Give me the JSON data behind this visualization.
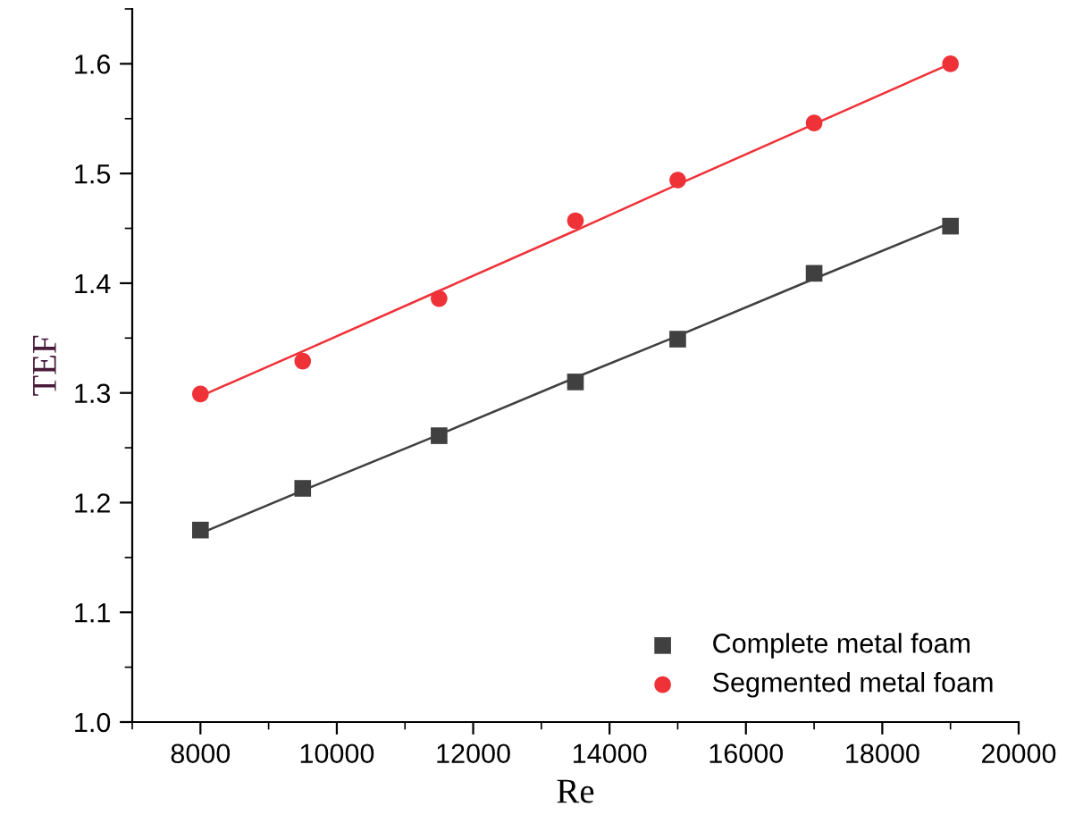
{
  "chart_data": {
    "type": "scatter",
    "xlabel": "Re",
    "ylabel": "TEF",
    "x": [
      8000,
      9500,
      11500,
      13500,
      15000,
      17000,
      19000
    ],
    "series": [
      {
        "name": "Complete metal foam",
        "color": "#404040",
        "marker": "square",
        "values": [
          1.175,
          1.213,
          1.261,
          1.31,
          1.349,
          1.409,
          1.452
        ]
      },
      {
        "name": "Segmented metal foam",
        "color": "#ee3238",
        "marker": "circle",
        "values": [
          1.299,
          1.329,
          1.386,
          1.457,
          1.494,
          1.546,
          1.6
        ]
      },
      {
        "type": "line",
        "color": "#404040",
        "values": [
          1.172,
          1.211,
          1.262,
          1.314,
          1.352,
          1.404,
          1.455
        ]
      },
      {
        "type": "line",
        "color": "#ee3238",
        "values": [
          1.297,
          1.338,
          1.393,
          1.448,
          1.49,
          1.545,
          1.6
        ]
      }
    ],
    "xlim": [
      7000,
      20000
    ],
    "xticks": [
      8000,
      10000,
      12000,
      14000,
      16000,
      18000,
      20000
    ],
    "ylim": [
      1.0,
      1.65
    ],
    "yticks": [
      {
        "value": 1.0,
        "label": "1.0"
      },
      1.1,
      1.2,
      1.3,
      1.4,
      1.5,
      1.6
    ],
    "grid": false,
    "legend": "bottom right"
  }
}
